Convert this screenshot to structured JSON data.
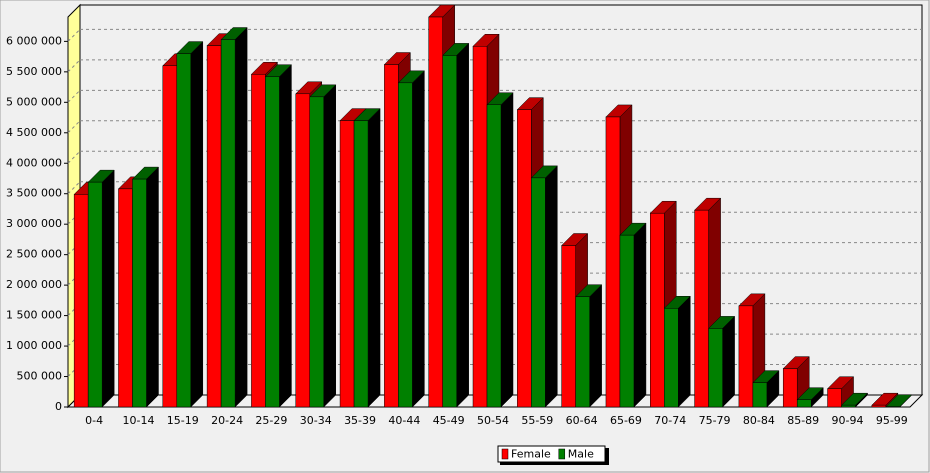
{
  "chart_data": {
    "type": "bar",
    "categories": [
      "0-4",
      "10-14",
      "15-19",
      "20-24",
      "25-29",
      "30-34",
      "35-39",
      "40-44",
      "45-49",
      "50-54",
      "55-59",
      "60-64",
      "65-69",
      "70-74",
      "75-79",
      "80-84",
      "85-89",
      "90-94",
      "95-99"
    ],
    "series": [
      {
        "name": "Female",
        "color": "#ff0000",
        "values": [
          3490000,
          3580000,
          5600000,
          5930000,
          5460000,
          5140000,
          4700000,
          5620000,
          6400000,
          5920000,
          4880000,
          2650000,
          4760000,
          3180000,
          3230000,
          1660000,
          630000,
          300000,
          30000
        ]
      },
      {
        "name": "Male",
        "color": "#008000",
        "values": [
          3690000,
          3740000,
          5800000,
          6030000,
          5420000,
          5090000,
          4700000,
          5320000,
          5770000,
          4960000,
          3760000,
          1810000,
          2820000,
          1620000,
          1290000,
          400000,
          120000,
          30000,
          5000
        ]
      }
    ],
    "ylim": [
      0,
      6400000
    ],
    "yticks": [
      0,
      {
        "value": 500000,
        "label": "500 000"
      },
      {
        "value": 1000000,
        "label": "1 000 000"
      },
      {
        "value": 1500000,
        "label": "1 500 000"
      },
      {
        "value": 2000000,
        "label": "2 000 000"
      },
      {
        "value": 2500000,
        "label": "2 500 000"
      },
      {
        "value": 3000000,
        "label": "3 000 000"
      },
      {
        "value": 3500000,
        "label": "3 500 000"
      },
      {
        "value": 4000000,
        "label": "4 000 000"
      },
      {
        "value": 4500000,
        "label": "4 500 000"
      },
      {
        "value": 5000000,
        "label": "5 000 000"
      },
      {
        "value": 5500000,
        "label": "5 500 000"
      },
      {
        "value": 6000000,
        "label": "6 000 000"
      }
    ],
    "grid": true,
    "legend": "bottom"
  }
}
